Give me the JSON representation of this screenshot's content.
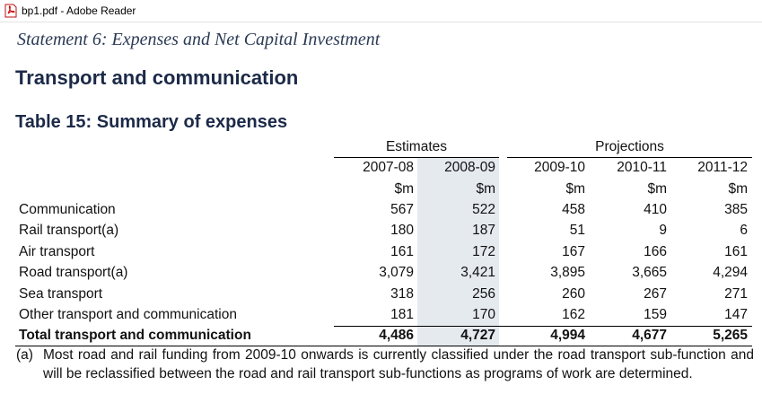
{
  "window": {
    "title": "bp1.pdf - Adobe Reader"
  },
  "document": {
    "statement": "Statement 6: Expenses and Net Capital Investment",
    "section": "Transport and communication",
    "table_title": "Table 15: Summary of expenses",
    "table": {
      "groups": [
        "Estimates",
        "Projections"
      ],
      "years": [
        "2007-08",
        "2008-09",
        "2009-10",
        "2010-11",
        "2011-12"
      ],
      "units": [
        "$m",
        "$m",
        "$m",
        "$m",
        "$m"
      ],
      "rows": [
        [
          "Communication",
          "567",
          "522",
          "458",
          "410",
          "385"
        ],
        [
          "Rail transport(a)",
          "180",
          "187",
          "51",
          "9",
          "6"
        ],
        [
          "Air transport",
          "161",
          "172",
          "167",
          "166",
          "161"
        ],
        [
          "Road transport(a)",
          "3,079",
          "3,421",
          "3,895",
          "3,665",
          "4,294"
        ],
        [
          "Sea transport",
          "318",
          "256",
          "260",
          "267",
          "271"
        ],
        [
          "Other transport and communication",
          "181",
          "170",
          "162",
          "159",
          "147"
        ]
      ],
      "total": [
        "Total transport and communication",
        "4,486",
        "4,727",
        "4,994",
        "4,677",
        "5,265"
      ]
    },
    "footnote": {
      "marker": "(a)",
      "text": "Most road and rail funding from 2009-10 onwards is currently classified under the road transport sub-function and will be reclassified between the road and rail transport sub-functions as programs of work are determined."
    }
  }
}
